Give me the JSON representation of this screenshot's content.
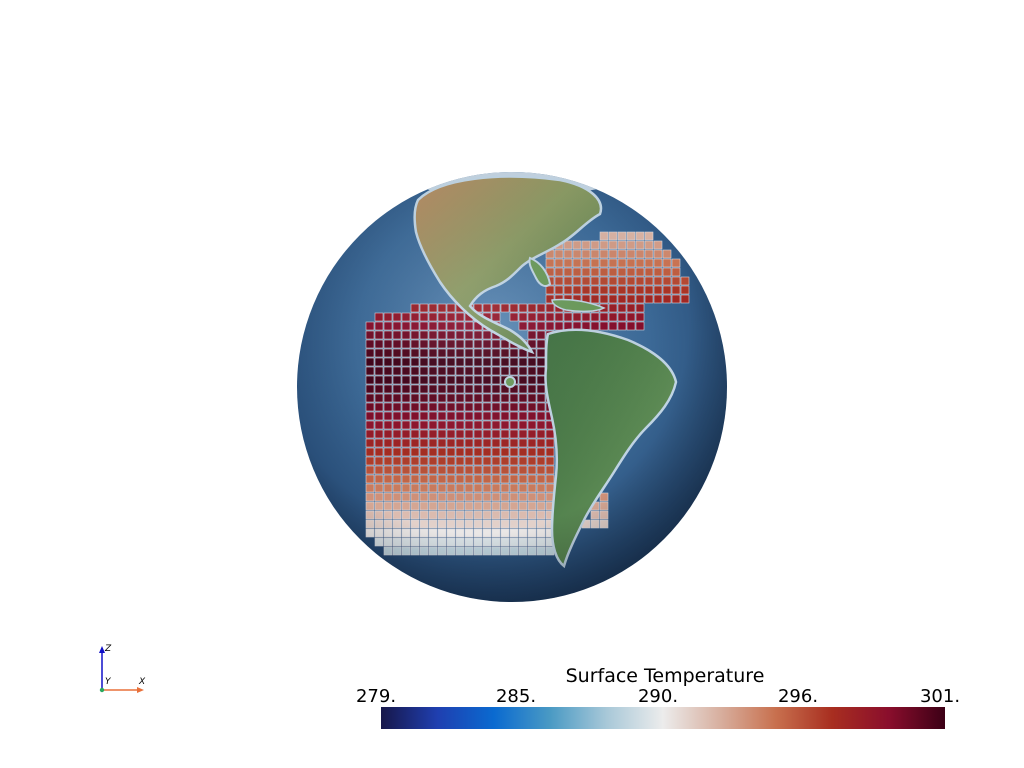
{
  "scene": {
    "subject": "globe-with-ocean-temperature-grid"
  },
  "colorbar": {
    "title": "Surface Temperature",
    "ticks": [
      "279.",
      "285.",
      "290.",
      "296.",
      "301."
    ],
    "tick_values": [
      279,
      285,
      290,
      296,
      301
    ],
    "range": [
      279,
      301
    ],
    "colormap": [
      "#17174a",
      "#1f3fb0",
      "#0a6ad0",
      "#4a9ac4",
      "#a8c8d8",
      "#ececec",
      "#d8b0a0",
      "#c8704e",
      "#a82e20",
      "#8a0e2c",
      "#3c0016"
    ]
  },
  "axes": {
    "z_label": "Z",
    "y_label": "Y",
    "x_label": "X",
    "z_color": "#1010c8",
    "x_color": "#e8703a",
    "y_color": "#2aa860"
  },
  "colors": {
    "ocean": "#3c6a98",
    "land": "#5a8a5a",
    "ice": "#dce8f0",
    "grid_line": "#d8d8e0"
  }
}
